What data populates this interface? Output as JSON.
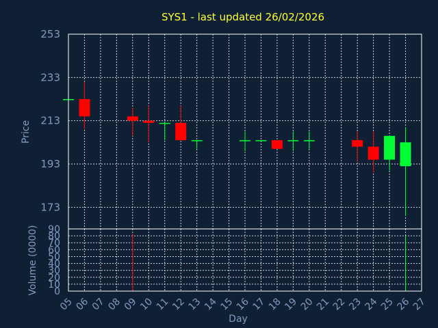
{
  "chart_data": [
    {
      "type": "candlestick",
      "title": "SYS1 - last updated 26/02/2026",
      "ylabel": "Price",
      "ylim": [
        163,
        253
      ],
      "yticks": [
        173,
        193,
        213,
        233,
        253
      ],
      "grid": true,
      "x_ticks": [
        "05",
        "06",
        "07",
        "08",
        "09",
        "10",
        "11",
        "12",
        "13",
        "14",
        "15",
        "16",
        "17",
        "18",
        "19",
        "20",
        "21",
        "22",
        "23",
        "24",
        "25",
        "26",
        "27"
      ],
      "candles": [
        {
          "day": 5,
          "open": 223,
          "high": 223,
          "low": 223,
          "close": 223
        },
        {
          "day": 6,
          "open": 223,
          "high": 231,
          "low": 209,
          "close": 215
        },
        {
          "day": 9,
          "open": 215,
          "high": 219,
          "low": 206,
          "close": 213
        },
        {
          "day": 10,
          "open": 213,
          "high": 220,
          "low": 203,
          "close": 212
        },
        {
          "day": 11,
          "open": 212,
          "high": 212,
          "low": 204,
          "close": 212
        },
        {
          "day": 12,
          "open": 212,
          "high": 220,
          "low": 204,
          "close": 204
        },
        {
          "day": 13,
          "open": 204,
          "high": 204,
          "low": 200,
          "close": 204
        },
        {
          "day": 16,
          "open": 204,
          "high": 208,
          "low": 199,
          "close": 204
        },
        {
          "day": 17,
          "open": 204,
          "high": 204,
          "low": 204,
          "close": 204
        },
        {
          "day": 18,
          "open": 204,
          "high": 204,
          "low": 200,
          "close": 200
        },
        {
          "day": 19,
          "open": 204,
          "high": 208,
          "low": 199,
          "close": 204
        },
        {
          "day": 20,
          "open": 204,
          "high": 208,
          "low": 200,
          "close": 204
        },
        {
          "day": 23,
          "open": 204,
          "high": 208,
          "low": 194,
          "close": 201
        },
        {
          "day": 24,
          "open": 201,
          "high": 208,
          "low": 189,
          "close": 195
        },
        {
          "day": 25,
          "open": 195,
          "high": 206,
          "low": 190,
          "close": 206
        },
        {
          "day": 26,
          "open": 192,
          "high": 210,
          "low": 169,
          "close": 203
        }
      ]
    },
    {
      "type": "bar",
      "ylabel": "Volume (0000)",
      "xlabel": "Day",
      "ylim": [
        0,
        90
      ],
      "yticks": [
        0,
        10,
        20,
        30,
        40,
        50,
        60,
        70,
        80,
        90
      ],
      "grid": true,
      "bars": [
        {
          "day": 9,
          "value": 83,
          "color": "#ff0000"
        },
        {
          "day": 23,
          "value": 1,
          "color": "#ff0000"
        },
        {
          "day": 26,
          "value": 80,
          "color": "#00ff33"
        }
      ]
    }
  ],
  "colors": {
    "background": "#0f2035",
    "up": "#00ff33",
    "down": "#ff0000",
    "neutral": "#00ff33",
    "text": "#7f9cbf",
    "title": "#ffff33"
  }
}
